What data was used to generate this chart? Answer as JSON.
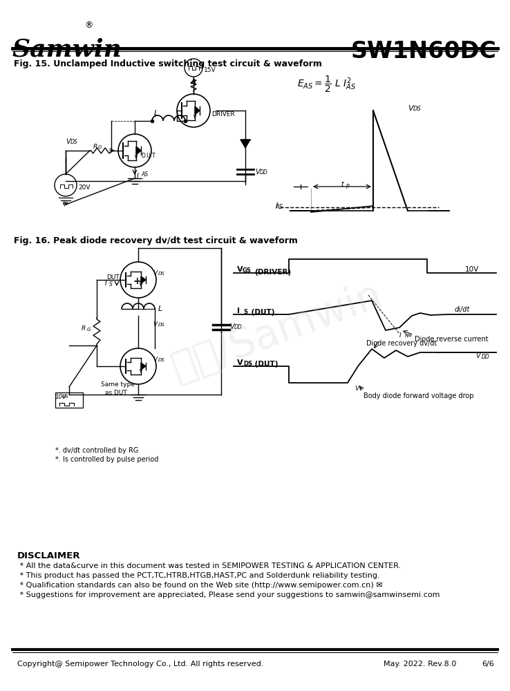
{
  "page_width": 7.38,
  "page_height": 10.0,
  "bg_color": "#ffffff",
  "header_company": "Samwin",
  "header_part": "SW1N60DC",
  "fig15_title": "Fig. 15. Unclamped Inductive switching test circuit & waveform",
  "fig16_title": "Fig. 16. Peak diode recovery dv/dt test circuit & waveform",
  "disclaimer_title": "DISCLAIMER",
  "disclaimer_lines": [
    " * All the data&curve in this document was tested in SEMIPOWER TESTING & APPLICATION CENTER.",
    " * This product has passed the PCT,TC,HTRB,HTGB,HAST,PC and Solderdunk reliability testing.",
    " * Qualification standards can also be found on the Web site (http://www.semipower.com.cn) ✉",
    " * Suggestions for improvement are appreciated, Please send your suggestions to samwin@samwinsemi.com"
  ],
  "footer_left": "Copyright@ Semipower Technology Co., Ltd. All rights reserved.",
  "footer_mid": "May. 2022. Rev.8.0",
  "footer_right": "6/6",
  "watermark_text": "闪达/Samwin",
  "line_color": "#000000"
}
